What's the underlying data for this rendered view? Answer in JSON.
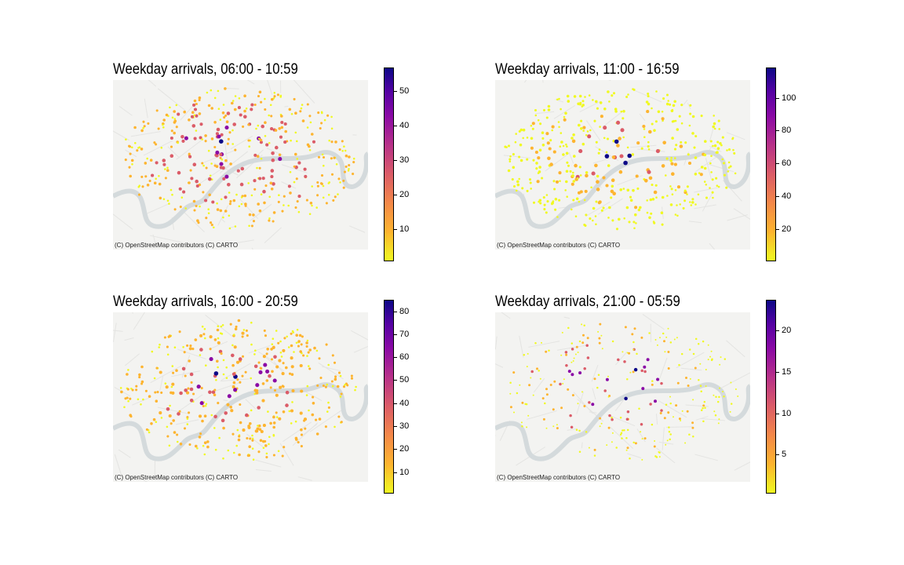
{
  "figure": {
    "attribution": "(C) OpenStreetMap contributors (C) CARTO",
    "colormap": "plasma",
    "colors": {
      "low": "#f0f921",
      "mid_low": "#fdb42f",
      "mid": "#db5c68",
      "mid_high": "#8b0aa5",
      "high": "#0d0887",
      "river": "#d4dadc",
      "land": "#f3f3f1"
    }
  },
  "panels": [
    {
      "title": "Weekday arrivals, 06:00 - 10:59",
      "ticks": [
        "50",
        "40",
        "30",
        "20",
        "10"
      ]
    },
    {
      "title": "Weekday arrivals, 11:00 - 16:59",
      "ticks": [
        "100",
        "80",
        "60",
        "40",
        "20"
      ]
    },
    {
      "title": "Weekday arrivals, 16:00 - 20:59",
      "ticks": [
        "80",
        "70",
        "60",
        "50",
        "40",
        "30",
        "20",
        "10"
      ]
    },
    {
      "title": "Weekday arrivals, 21:00 - 05:59",
      "ticks": [
        "20",
        "15",
        "10",
        "5"
      ]
    }
  ]
}
